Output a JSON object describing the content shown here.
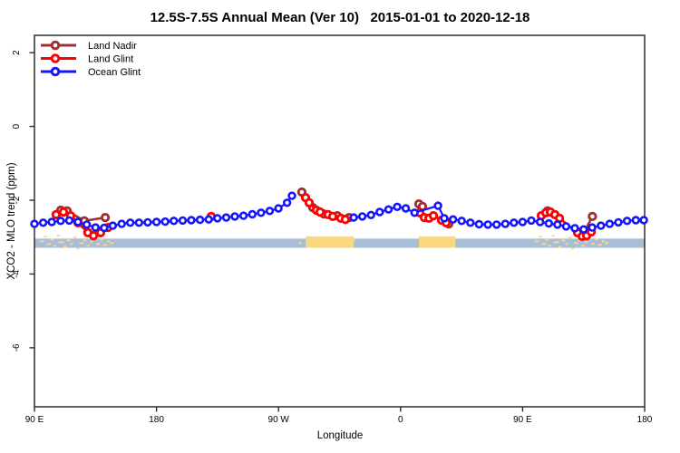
{
  "chart_data": {
    "type": "scatter",
    "title": "12.5S-7.5S Annual Mean (Ver 10)   2015-01-01 to 2020-12-18",
    "xlabel": "Longitude",
    "ylabel": "XCO2 - MLO trend (ppm)",
    "x_axis": {
      "min": 90,
      "max": 540,
      "ticks": [
        {
          "lon": 90,
          "label": "90 E"
        },
        {
          "lon": 180,
          "label": "180"
        },
        {
          "lon": 270,
          "label": "90 W"
        },
        {
          "lon": 360,
          "label": "0"
        },
        {
          "lon": 450,
          "label": "90 E"
        },
        {
          "lon": 540,
          "label": "180"
        }
      ]
    },
    "y_axis": {
      "min": -7.6,
      "max": 2.47,
      "ticks": [
        {
          "v": 2,
          "label": "2"
        },
        {
          "v": 0,
          "label": "0"
        },
        {
          "v": -2,
          "label": "-2"
        },
        {
          "v": -4,
          "label": "-4"
        },
        {
          "v": -6,
          "label": "-6"
        }
      ]
    },
    "legend_position": "top-left",
    "grid": false,
    "series": [
      {
        "name": "Land Nadir",
        "color": "#A03030",
        "points": [
          [
            109.4,
            -2.27
          ],
          [
            114.1,
            -2.29
          ],
          [
            126.8,
            -2.56
          ],
          [
            142.2,
            -2.47
          ],
          [
            287.2,
            -1.78
          ],
          [
            295.3,
            -2.2
          ],
          [
            303.3,
            -2.37
          ],
          [
            313.3,
            -2.42
          ],
          [
            322.0,
            -2.47
          ],
          [
            373.5,
            -2.1
          ],
          [
            376.2,
            -2.17
          ],
          [
            395.6,
            -2.64
          ],
          [
            468.4,
            -2.29
          ],
          [
            494.5,
            -2.93
          ],
          [
            501.5,
            -2.44
          ]
        ]
      },
      {
        "name": "Land Glint",
        "color": "#FF0000",
        "points": [
          [
            106.0,
            -2.39
          ],
          [
            111.4,
            -2.32
          ],
          [
            116.7,
            -2.42
          ],
          [
            122.1,
            -2.61
          ],
          [
            129.4,
            -2.88
          ],
          [
            133.5,
            -2.96
          ],
          [
            138.8,
            -2.88
          ],
          [
            144.2,
            -2.74
          ],
          [
            220.4,
            -2.44
          ],
          [
            289.9,
            -1.93
          ],
          [
            292.6,
            -2.07
          ],
          [
            297.9,
            -2.27
          ],
          [
            300.6,
            -2.32
          ],
          [
            306.6,
            -2.39
          ],
          [
            310.0,
            -2.44
          ],
          [
            316.0,
            -2.49
          ],
          [
            319.3,
            -2.52
          ],
          [
            374.2,
            -2.34
          ],
          [
            377.5,
            -2.47
          ],
          [
            380.9,
            -2.49
          ],
          [
            384.2,
            -2.42
          ],
          [
            390.2,
            -2.54
          ],
          [
            393.6,
            -2.61
          ],
          [
            463.8,
            -2.42
          ],
          [
            467.1,
            -2.34
          ],
          [
            470.5,
            -2.32
          ],
          [
            473.8,
            -2.39
          ],
          [
            477.2,
            -2.49
          ],
          [
            490.5,
            -2.88
          ],
          [
            493.9,
            -2.98
          ],
          [
            497.2,
            -2.96
          ],
          [
            500.6,
            -2.86
          ]
        ]
      },
      {
        "name": "Ocean Glint",
        "color": "#1414FF",
        "points": [
          [
            90.0,
            -2.64
          ],
          [
            96.4,
            -2.61
          ],
          [
            102.8,
            -2.59
          ],
          [
            109.3,
            -2.56
          ],
          [
            115.7,
            -2.55
          ],
          [
            122.1,
            -2.59
          ],
          [
            128.6,
            -2.66
          ],
          [
            135.0,
            -2.74
          ],
          [
            141.4,
            -2.75
          ],
          [
            147.8,
            -2.69
          ],
          [
            154.3,
            -2.64
          ],
          [
            160.7,
            -2.61
          ],
          [
            167.1,
            -2.61
          ],
          [
            173.5,
            -2.6
          ],
          [
            180.0,
            -2.59
          ],
          [
            186.4,
            -2.58
          ],
          [
            192.8,
            -2.56
          ],
          [
            199.3,
            -2.55
          ],
          [
            205.7,
            -2.54
          ],
          [
            212.1,
            -2.53
          ],
          [
            218.5,
            -2.52
          ],
          [
            224.9,
            -2.49
          ],
          [
            231.4,
            -2.47
          ],
          [
            237.8,
            -2.44
          ],
          [
            244.2,
            -2.42
          ],
          [
            250.7,
            -2.38
          ],
          [
            257.1,
            -2.34
          ],
          [
            263.5,
            -2.29
          ],
          [
            269.9,
            -2.22
          ],
          [
            276.3,
            -2.07
          ],
          [
            279.9,
            -1.88
          ],
          [
            325.4,
            -2.47
          ],
          [
            331.8,
            -2.44
          ],
          [
            338.2,
            -2.4
          ],
          [
            344.6,
            -2.32
          ],
          [
            351.1,
            -2.25
          ],
          [
            357.5,
            -2.18
          ],
          [
            363.9,
            -2.22
          ],
          [
            370.3,
            -2.34
          ],
          [
            387.6,
            -2.15
          ],
          [
            392.2,
            -2.49
          ],
          [
            398.7,
            -2.52
          ],
          [
            405.1,
            -2.56
          ],
          [
            411.5,
            -2.61
          ],
          [
            417.9,
            -2.65
          ],
          [
            424.4,
            -2.66
          ],
          [
            430.8,
            -2.66
          ],
          [
            437.2,
            -2.64
          ],
          [
            443.6,
            -2.61
          ],
          [
            450.0,
            -2.59
          ],
          [
            456.4,
            -2.55
          ],
          [
            462.9,
            -2.59
          ],
          [
            469.3,
            -2.63
          ],
          [
            475.7,
            -2.66
          ],
          [
            482.1,
            -2.71
          ],
          [
            488.5,
            -2.76
          ],
          [
            495.0,
            -2.79
          ],
          [
            501.3,
            -2.74
          ],
          [
            507.8,
            -2.69
          ],
          [
            514.2,
            -2.64
          ],
          [
            520.6,
            -2.6
          ],
          [
            527.0,
            -2.56
          ],
          [
            533.5,
            -2.54
          ],
          [
            539.4,
            -2.54
          ]
        ]
      }
    ],
    "map_strip": {
      "v_top": -3.04,
      "v_bottom": -3.29,
      "ocean_color": "#A8BED8",
      "land_color": "#F9D87F",
      "land_blocks": [
        {
          "from": 290.0,
          "to": 325.5
        },
        {
          "from": 373.5,
          "to": 400.5
        }
      ],
      "land_speckles": [
        [
          95.5,
          3,
          4
        ],
        [
          98,
          -2,
          3
        ],
        [
          100.5,
          6,
          5
        ],
        [
          103,
          1,
          4
        ],
        [
          105,
          8,
          3
        ],
        [
          107.5,
          -3,
          3
        ],
        [
          110,
          4,
          6
        ],
        [
          112.5,
          9,
          3
        ],
        [
          115,
          2,
          4
        ],
        [
          117.5,
          6,
          3
        ],
        [
          120,
          -1,
          4
        ],
        [
          122,
          11,
          3
        ],
        [
          124.5,
          5,
          5
        ],
        [
          127,
          2,
          3
        ],
        [
          129.5,
          8,
          4
        ],
        [
          132,
          4,
          3
        ],
        [
          134.5,
          -2,
          3
        ],
        [
          137,
          6,
          4
        ],
        [
          139.5,
          1,
          3
        ],
        [
          142,
          7,
          4
        ],
        [
          144.5,
          3,
          3
        ],
        [
          147,
          5,
          4
        ],
        [
          286,
          5,
          3
        ],
        [
          322,
          9,
          4
        ],
        [
          325.5,
          2,
          3
        ],
        [
          460.5,
          3,
          4
        ],
        [
          463,
          -2,
          3
        ],
        [
          465.5,
          6,
          5
        ],
        [
          468,
          1,
          4
        ],
        [
          470,
          8,
          3
        ],
        [
          472.5,
          -3,
          3
        ],
        [
          475,
          4,
          6
        ],
        [
          477.5,
          9,
          3
        ],
        [
          480,
          2,
          4
        ],
        [
          482.5,
          6,
          3
        ],
        [
          485,
          -1,
          4
        ],
        [
          487,
          11,
          3
        ],
        [
          489.5,
          5,
          5
        ],
        [
          492,
          2,
          3
        ],
        [
          494.5,
          8,
          4
        ],
        [
          497,
          4,
          3
        ],
        [
          499.5,
          -2,
          3
        ],
        [
          502,
          6,
          4
        ],
        [
          504.5,
          1,
          3
        ],
        [
          507,
          7,
          4
        ],
        [
          509.5,
          3,
          3
        ],
        [
          512,
          5,
          4
        ]
      ]
    }
  }
}
